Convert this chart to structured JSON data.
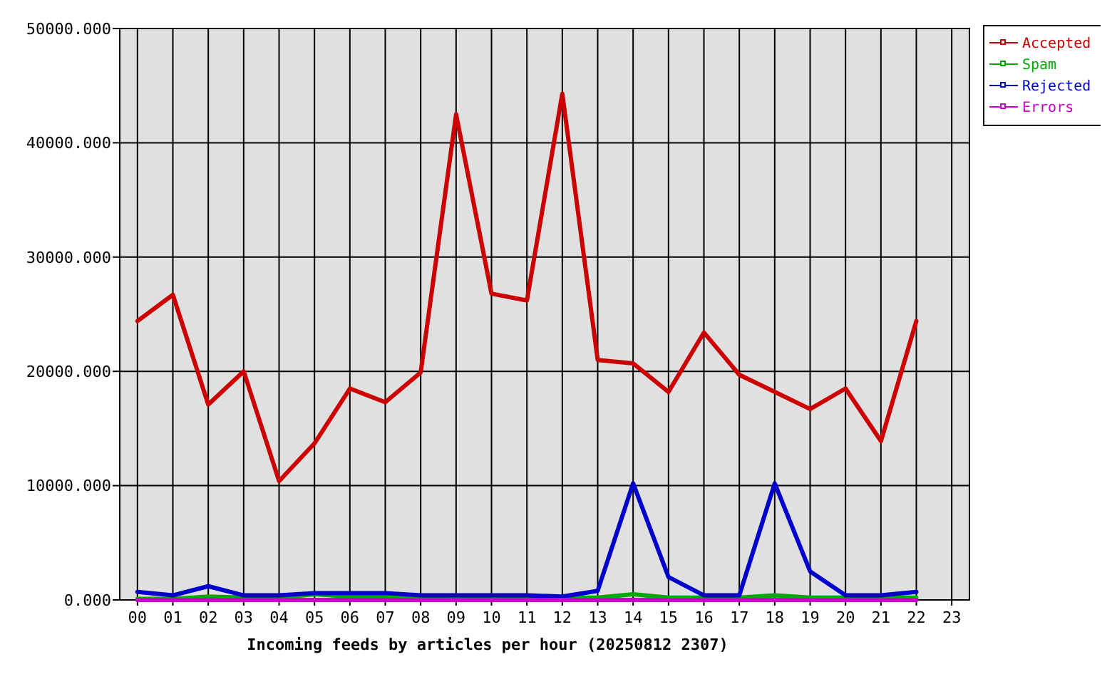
{
  "chart_data": {
    "type": "line",
    "xlabel": "Incoming feeds by articles per hour (20250812 2307)",
    "categories": [
      "00",
      "01",
      "02",
      "03",
      "04",
      "05",
      "06",
      "07",
      "08",
      "09",
      "10",
      "11",
      "12",
      "13",
      "14",
      "15",
      "16",
      "17",
      "18",
      "19",
      "20",
      "21",
      "22",
      "23"
    ],
    "series": [
      {
        "name": "Accepted",
        "color": "#cc0000",
        "values": [
          24400,
          26700,
          17100,
          20000,
          10400,
          13700,
          18500,
          17300,
          19900,
          42500,
          26800,
          26200,
          44300,
          21000,
          20700,
          18200,
          23400,
          19700,
          18200,
          16700,
          18500,
          13900,
          24400,
          null
        ]
      },
      {
        "name": "Spam",
        "color": "#00aa00",
        "values": [
          100,
          100,
          300,
          200,
          200,
          500,
          300,
          300,
          200,
          200,
          200,
          200,
          200,
          200,
          500,
          200,
          200,
          200,
          400,
          200,
          200,
          200,
          200,
          null
        ]
      },
      {
        "name": "Rejected",
        "color": "#0000cc",
        "values": [
          700,
          400,
          1200,
          400,
          400,
          600,
          600,
          600,
          400,
          400,
          400,
          400,
          300,
          800,
          10200,
          2000,
          400,
          400,
          10200,
          2500,
          400,
          400,
          700,
          null
        ]
      },
      {
        "name": "Errors",
        "color": "#cc00cc",
        "values": [
          0,
          0,
          0,
          0,
          0,
          0,
          0,
          0,
          0,
          0,
          0,
          0,
          0,
          0,
          0,
          0,
          0,
          0,
          0,
          0,
          0,
          0,
          0,
          null
        ]
      }
    ],
    "ylim": [
      0,
      50000
    ],
    "yticks": [
      {
        "value": 0,
        "label": "0.000"
      },
      {
        "value": 10000,
        "label": "10000.000"
      },
      {
        "value": 20000,
        "label": "20000.000"
      },
      {
        "value": 30000,
        "label": "30000.000"
      },
      {
        "value": 40000,
        "label": "40000.000"
      },
      {
        "value": 50000,
        "label": "50000.000"
      }
    ],
    "grid": true,
    "legend": "top right"
  }
}
